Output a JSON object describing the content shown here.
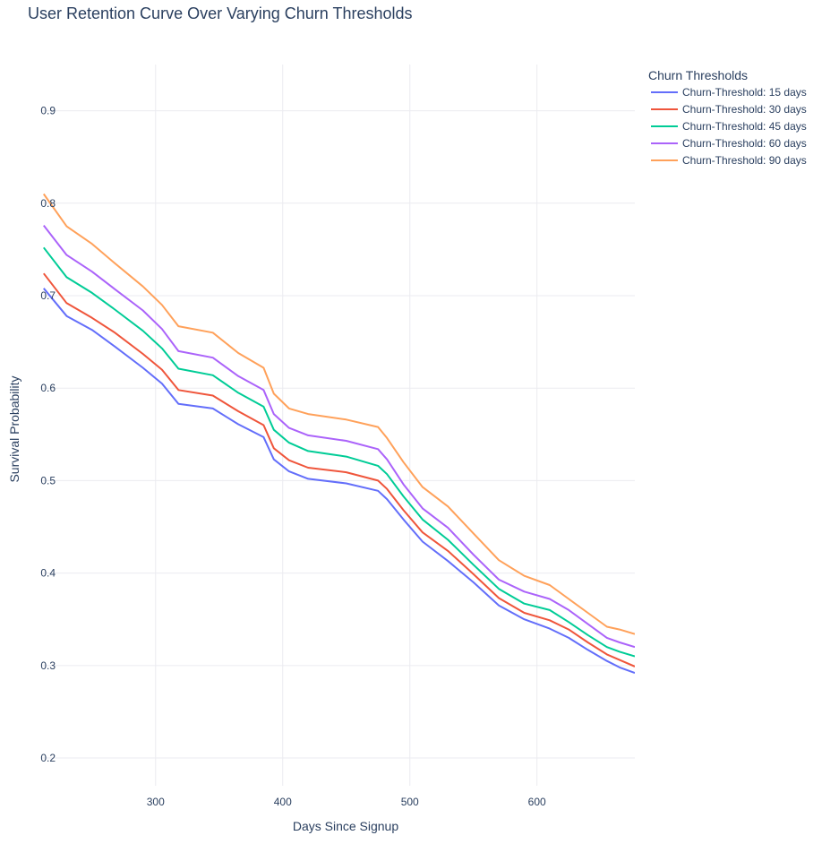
{
  "chart_data": {
    "type": "line",
    "title": "User Retention Curve Over Varying Churn Thresholds",
    "xlabel": "Days Since Signup",
    "ylabel": "Survival Probability",
    "xlim": [
      210,
      677
    ],
    "ylim": [
      0.17,
      0.95
    ],
    "xticks": [
      300,
      400,
      500,
      600
    ],
    "yticks": [
      0.2,
      0.3,
      0.4,
      0.5,
      0.6,
      0.7,
      0.8,
      0.9
    ],
    "grid": true,
    "legend": {
      "title": "Churn Thresholds",
      "placement": "top-right"
    },
    "x": [
      212,
      230,
      250,
      268,
      290,
      305,
      318,
      345,
      365,
      385,
      393,
      405,
      420,
      450,
      475,
      482,
      495,
      510,
      530,
      550,
      570,
      590,
      610,
      625,
      640,
      655,
      665,
      677
    ],
    "series": [
      {
        "name": "Churn-Threshold: 15 days",
        "color": "#636efa",
        "values": [
          0.708,
          0.678,
          0.663,
          0.645,
          0.622,
          0.605,
          0.583,
          0.578,
          0.561,
          0.547,
          0.523,
          0.51,
          0.502,
          0.497,
          0.489,
          0.48,
          0.458,
          0.434,
          0.413,
          0.39,
          0.365,
          0.35,
          0.34,
          0.33,
          0.317,
          0.305,
          0.298,
          0.292
        ]
      },
      {
        "name": "Churn-Threshold: 30 days",
        "color": "#EF553B",
        "values": [
          0.724,
          0.692,
          0.676,
          0.66,
          0.637,
          0.62,
          0.598,
          0.592,
          0.575,
          0.56,
          0.535,
          0.522,
          0.514,
          0.509,
          0.5,
          0.491,
          0.468,
          0.444,
          0.424,
          0.399,
          0.373,
          0.357,
          0.349,
          0.339,
          0.325,
          0.312,
          0.306,
          0.299
        ]
      },
      {
        "name": "Churn-Threshold: 45 days",
        "color": "#00cc96",
        "values": [
          0.752,
          0.72,
          0.703,
          0.685,
          0.662,
          0.643,
          0.621,
          0.614,
          0.595,
          0.58,
          0.555,
          0.541,
          0.532,
          0.526,
          0.516,
          0.507,
          0.483,
          0.458,
          0.436,
          0.409,
          0.383,
          0.367,
          0.36,
          0.347,
          0.333,
          0.32,
          0.315,
          0.31
        ]
      },
      {
        "name": "Churn-Threshold: 60 days",
        "color": "#ab63fa",
        "values": [
          0.776,
          0.744,
          0.726,
          0.707,
          0.684,
          0.664,
          0.64,
          0.633,
          0.613,
          0.598,
          0.572,
          0.557,
          0.549,
          0.543,
          0.534,
          0.523,
          0.496,
          0.47,
          0.449,
          0.42,
          0.393,
          0.38,
          0.372,
          0.36,
          0.345,
          0.33,
          0.325,
          0.32
        ]
      },
      {
        "name": "Churn-Threshold: 90 days",
        "color": "#FFA15A",
        "values": [
          0.81,
          0.775,
          0.756,
          0.735,
          0.71,
          0.69,
          0.667,
          0.66,
          0.638,
          0.622,
          0.594,
          0.578,
          0.572,
          0.566,
          0.558,
          0.546,
          0.52,
          0.493,
          0.472,
          0.443,
          0.414,
          0.397,
          0.387,
          0.372,
          0.357,
          0.342,
          0.339,
          0.334
        ]
      }
    ]
  }
}
